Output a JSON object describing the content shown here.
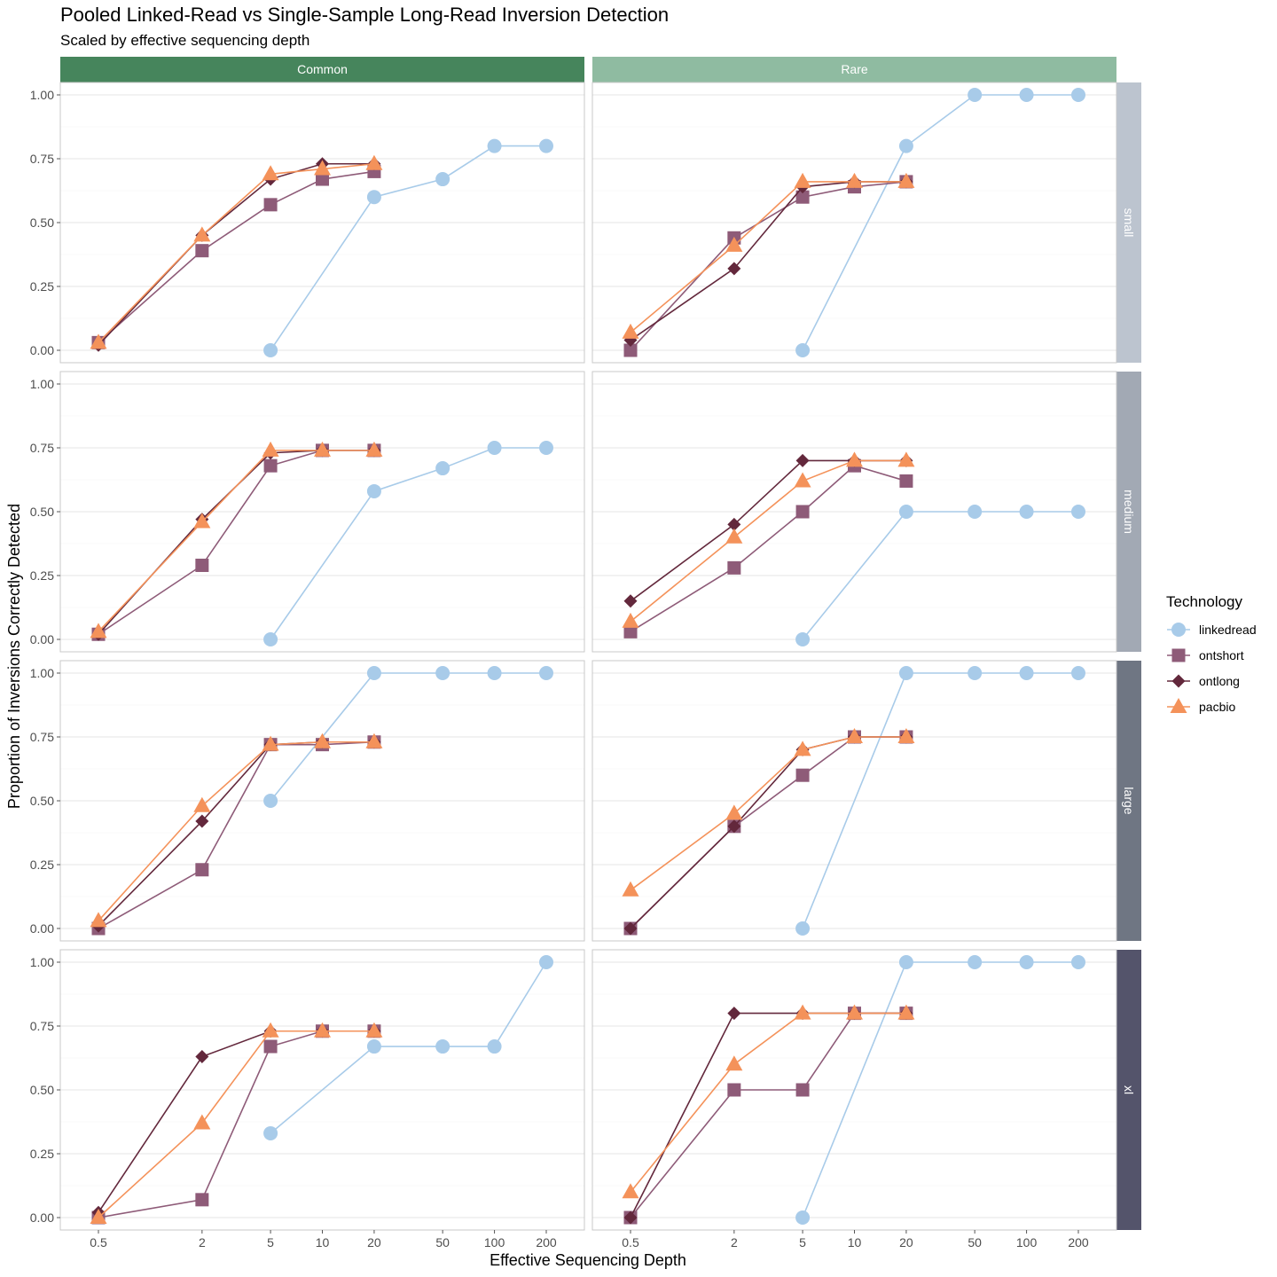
{
  "chart_data": {
    "type": "line",
    "title": "Pooled Linked-Read vs Single-Sample Long-Read Inversion Detection",
    "subtitle": "Scaled by effective sequencing depth",
    "xlabel": "Effective Sequencing Depth",
    "ylabel": "Proportion of Inversions Correctly Detected",
    "x_scale": "log",
    "x_ticks": [
      "0.5",
      "2",
      "5",
      "10",
      "20",
      "50",
      "100",
      "200"
    ],
    "x_tick_values": [
      0.5,
      2,
      5,
      10,
      20,
      50,
      100,
      200
    ],
    "ylim": [
      0,
      1
    ],
    "y_ticks": [
      "0.00",
      "0.25",
      "0.50",
      "0.75",
      "1.00"
    ],
    "grid": true,
    "legend": {
      "title": "Technology",
      "position": "right"
    },
    "columns": [
      "Common",
      "Rare"
    ],
    "rows": [
      "small",
      "medium",
      "large",
      "xl"
    ],
    "strip_colors": {
      "columns": [
        "#46855c",
        "#8fbba1"
      ],
      "rows": [
        "#bcc4cf",
        "#a2a9b4",
        "#6f7683",
        "#54546b"
      ]
    },
    "series_styles": [
      {
        "name": "linkedread",
        "color": "#a8cbe9",
        "marker": "circle"
      },
      {
        "name": "ontshort",
        "color": "#8e5b78",
        "marker": "square"
      },
      {
        "name": "ontlong",
        "color": "#63283c",
        "marker": "diamond"
      },
      {
        "name": "pacbio",
        "color": "#f4925a",
        "marker": "triangle"
      }
    ],
    "panels": [
      {
        "column": "Common",
        "row": "small",
        "series": [
          {
            "name": "linkedread",
            "x": [
              5,
              20,
              50,
              100,
              200
            ],
            "y": [
              0.0,
              0.6,
              0.67,
              0.8,
              0.8
            ]
          },
          {
            "name": "ontshort",
            "x": [
              0.5,
              2,
              5,
              10,
              20
            ],
            "y": [
              0.03,
              0.39,
              0.57,
              0.67,
              0.7
            ]
          },
          {
            "name": "ontlong",
            "x": [
              0.5,
              2,
              5,
              10,
              20
            ],
            "y": [
              0.02,
              0.45,
              0.67,
              0.73,
              0.73
            ]
          },
          {
            "name": "pacbio",
            "x": [
              0.5,
              2,
              5,
              10,
              20
            ],
            "y": [
              0.03,
              0.45,
              0.69,
              0.71,
              0.73
            ]
          }
        ]
      },
      {
        "column": "Rare",
        "row": "small",
        "series": [
          {
            "name": "linkedread",
            "x": [
              5,
              20,
              50,
              100,
              200
            ],
            "y": [
              0.0,
              0.8,
              1.0,
              1.0,
              1.0
            ]
          },
          {
            "name": "ontshort",
            "x": [
              0.5,
              2,
              5,
              10,
              20
            ],
            "y": [
              0.0,
              0.44,
              0.6,
              0.64,
              0.66
            ]
          },
          {
            "name": "ontlong",
            "x": [
              0.5,
              2,
              5,
              10,
              20
            ],
            "y": [
              0.04,
              0.32,
              0.64,
              0.66,
              0.66
            ]
          },
          {
            "name": "pacbio",
            "x": [
              0.5,
              2,
              5,
              10,
              20
            ],
            "y": [
              0.07,
              0.41,
              0.66,
              0.66,
              0.66
            ]
          }
        ]
      },
      {
        "column": "Common",
        "row": "medium",
        "series": [
          {
            "name": "linkedread",
            "x": [
              5,
              20,
              50,
              100,
              200
            ],
            "y": [
              0.0,
              0.58,
              0.67,
              0.75,
              0.75
            ]
          },
          {
            "name": "ontshort",
            "x": [
              0.5,
              2,
              5,
              10,
              20
            ],
            "y": [
              0.02,
              0.29,
              0.68,
              0.74,
              0.74
            ]
          },
          {
            "name": "ontlong",
            "x": [
              0.5,
              2,
              5,
              10,
              20
            ],
            "y": [
              0.02,
              0.47,
              0.73,
              0.74,
              0.74
            ]
          },
          {
            "name": "pacbio",
            "x": [
              0.5,
              2,
              5,
              10,
              20
            ],
            "y": [
              0.03,
              0.46,
              0.74,
              0.74,
              0.74
            ]
          }
        ]
      },
      {
        "column": "Rare",
        "row": "medium",
        "series": [
          {
            "name": "linkedread",
            "x": [
              5,
              20,
              50,
              100,
              200
            ],
            "y": [
              0.0,
              0.5,
              0.5,
              0.5,
              0.5
            ]
          },
          {
            "name": "ontshort",
            "x": [
              0.5,
              2,
              5,
              10,
              20
            ],
            "y": [
              0.03,
              0.28,
              0.5,
              0.68,
              0.62
            ]
          },
          {
            "name": "ontlong",
            "x": [
              0.5,
              2,
              5,
              10,
              20
            ],
            "y": [
              0.15,
              0.45,
              0.7,
              0.7,
              0.7
            ]
          },
          {
            "name": "pacbio",
            "x": [
              0.5,
              2,
              5,
              10,
              20
            ],
            "y": [
              0.07,
              0.4,
              0.62,
              0.7,
              0.7
            ]
          }
        ]
      },
      {
        "column": "Common",
        "row": "large",
        "series": [
          {
            "name": "linkedread",
            "x": [
              5,
              20,
              50,
              100,
              200
            ],
            "y": [
              0.5,
              1.0,
              1.0,
              1.0,
              1.0
            ]
          },
          {
            "name": "ontshort",
            "x": [
              0.5,
              2,
              5,
              10,
              20
            ],
            "y": [
              0.0,
              0.23,
              0.72,
              0.72,
              0.73
            ]
          },
          {
            "name": "ontlong",
            "x": [
              0.5,
              2,
              5,
              10,
              20
            ],
            "y": [
              0.01,
              0.42,
              0.72,
              0.73,
              0.73
            ]
          },
          {
            "name": "pacbio",
            "x": [
              0.5,
              2,
              5,
              10,
              20
            ],
            "y": [
              0.03,
              0.48,
              0.72,
              0.73,
              0.73
            ]
          }
        ]
      },
      {
        "column": "Rare",
        "row": "large",
        "series": [
          {
            "name": "linkedread",
            "x": [
              5,
              20,
              50,
              100,
              200
            ],
            "y": [
              0.0,
              1.0,
              1.0,
              1.0,
              1.0
            ]
          },
          {
            "name": "ontshort",
            "x": [
              0.5,
              2,
              5,
              10,
              20
            ],
            "y": [
              0.0,
              0.4,
              0.6,
              0.75,
              0.75
            ]
          },
          {
            "name": "ontlong",
            "x": [
              0.5,
              2,
              5,
              10,
              20
            ],
            "y": [
              0.0,
              0.4,
              0.7,
              0.75,
              0.75
            ]
          },
          {
            "name": "pacbio",
            "x": [
              0.5,
              2,
              5,
              10,
              20
            ],
            "y": [
              0.15,
              0.45,
              0.7,
              0.75,
              0.75
            ]
          }
        ]
      },
      {
        "column": "Common",
        "row": "xl",
        "series": [
          {
            "name": "linkedread",
            "x": [
              5,
              20,
              50,
              100,
              200
            ],
            "y": [
              0.33,
              0.67,
              0.67,
              0.67,
              1.0
            ]
          },
          {
            "name": "ontshort",
            "x": [
              0.5,
              2,
              5,
              10,
              20
            ],
            "y": [
              0.0,
              0.07,
              0.67,
              0.73,
              0.73
            ]
          },
          {
            "name": "ontlong",
            "x": [
              0.5,
              2,
              5,
              10,
              20
            ],
            "y": [
              0.02,
              0.63,
              0.73,
              0.73,
              0.73
            ]
          },
          {
            "name": "pacbio",
            "x": [
              0.5,
              2,
              5,
              10,
              20
            ],
            "y": [
              0.0,
              0.37,
              0.73,
              0.73,
              0.73
            ]
          }
        ]
      },
      {
        "column": "Rare",
        "row": "xl",
        "series": [
          {
            "name": "linkedread",
            "x": [
              5,
              20,
              50,
              100,
              200
            ],
            "y": [
              0.0,
              1.0,
              1.0,
              1.0,
              1.0
            ]
          },
          {
            "name": "ontshort",
            "x": [
              0.5,
              2,
              5,
              10,
              20
            ],
            "y": [
              0.0,
              0.5,
              0.5,
              0.8,
              0.8
            ]
          },
          {
            "name": "ontlong",
            "x": [
              0.5,
              2,
              5,
              10,
              20
            ],
            "y": [
              0.0,
              0.8,
              0.8,
              0.8,
              0.8
            ]
          },
          {
            "name": "pacbio",
            "x": [
              0.5,
              2,
              5,
              10,
              20
            ],
            "y": [
              0.1,
              0.6,
              0.8,
              0.8,
              0.8
            ]
          }
        ]
      }
    ]
  }
}
